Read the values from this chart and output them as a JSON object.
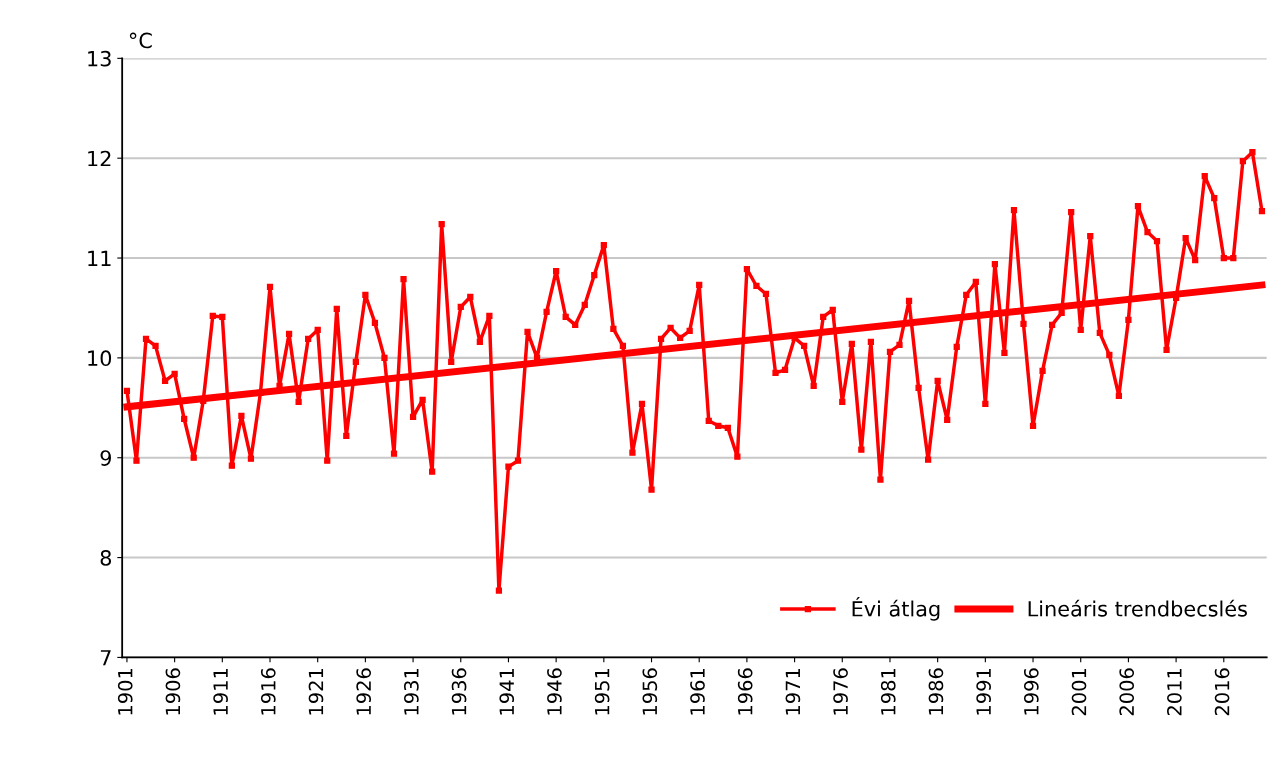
{
  "chart_data": {
    "type": "line",
    "ylabel": "°C",
    "xlim": [
      1900.5,
      2020.5
    ],
    "xticks": [
      1901,
      1906,
      1911,
      1916,
      1921,
      1926,
      1931,
      1936,
      1941,
      1946,
      1951,
      1956,
      1961,
      1966,
      1971,
      1976,
      1981,
      1986,
      1991,
      1996,
      2001,
      2006,
      2011,
      2016
    ],
    "ylim": [
      7,
      13
    ],
    "yticks": [
      7,
      8,
      9,
      10,
      11,
      12,
      13
    ],
    "grid": "y",
    "legend": "bottom right",
    "series": [
      {
        "name": "Évi átlag",
        "color": "#ff0000",
        "marker": "square",
        "line_style": "solid",
        "x": [
          1901,
          1902,
          1903,
          1904,
          1905,
          1906,
          1907,
          1908,
          1909,
          1910,
          1911,
          1912,
          1913,
          1914,
          1915,
          1916,
          1917,
          1918,
          1919,
          1920,
          1921,
          1922,
          1923,
          1924,
          1925,
          1926,
          1927,
          1928,
          1929,
          1930,
          1931,
          1932,
          1933,
          1934,
          1935,
          1936,
          1937,
          1938,
          1939,
          1940,
          1941,
          1942,
          1943,
          1944,
          1945,
          1946,
          1947,
          1948,
          1949,
          1950,
          1951,
          1952,
          1953,
          1954,
          1955,
          1956,
          1957,
          1958,
          1959,
          1960,
          1961,
          1962,
          1963,
          1964,
          1965,
          1966,
          1967,
          1968,
          1969,
          1970,
          1971,
          1972,
          1973,
          1974,
          1975,
          1976,
          1977,
          1978,
          1979,
          1980,
          1981,
          1982,
          1983,
          1984,
          1985,
          1986,
          1987,
          1988,
          1989,
          1990,
          1991,
          1992,
          1993,
          1994,
          1995,
          1996,
          1997,
          1998,
          1999,
          2000,
          2001,
          2002,
          2003,
          2004,
          2005,
          2006,
          2007,
          2008,
          2009,
          2010,
          2011,
          2012,
          2013,
          2014,
          2015,
          2016,
          2017,
          2018,
          2019,
          2020
        ],
        "values": [
          9.67,
          8.97,
          10.19,
          10.12,
          9.77,
          9.84,
          9.39,
          9.0,
          9.57,
          10.42,
          10.41,
          8.92,
          9.42,
          8.99,
          9.65,
          10.71,
          9.72,
          10.24,
          9.56,
          10.19,
          10.28,
          8.97,
          10.49,
          9.22,
          9.96,
          10.63,
          10.35,
          10.0,
          9.04,
          10.79,
          9.41,
          9.58,
          8.86,
          11.34,
          9.96,
          10.51,
          10.61,
          10.16,
          10.42,
          7.67,
          8.91,
          8.97,
          10.26,
          10.0,
          10.46,
          10.87,
          10.41,
          10.33,
          10.53,
          10.83,
          11.13,
          10.29,
          10.12,
          9.05,
          9.54,
          8.68,
          10.19,
          10.3,
          10.2,
          10.27,
          10.73,
          9.37,
          9.32,
          9.3,
          9.01,
          10.89,
          10.72,
          10.64,
          9.85,
          9.88,
          10.2,
          10.12,
          9.72,
          10.41,
          10.48,
          9.56,
          10.14,
          9.08,
          10.16,
          8.78,
          10.06,
          10.13,
          10.57,
          9.7,
          8.98,
          9.77,
          9.38,
          10.11,
          10.63,
          10.76,
          9.54,
          10.94,
          10.05,
          11.48,
          10.34,
          9.32,
          9.87,
          10.33,
          10.45,
          11.46,
          10.28,
          11.22,
          10.25,
          10.03,
          9.62,
          10.38,
          11.52,
          11.26,
          11.17,
          10.08,
          10.6,
          11.2,
          10.98,
          11.82,
          11.6,
          11.0,
          11.0,
          11.97,
          12.06,
          11.47
        ]
      },
      {
        "name": "Lineáris trendbecslés",
        "color": "#ff0000",
        "marker": "none",
        "line_style": "solid",
        "x": [
          1901,
          2020
        ],
        "values": [
          9.51,
          10.73
        ]
      }
    ]
  }
}
